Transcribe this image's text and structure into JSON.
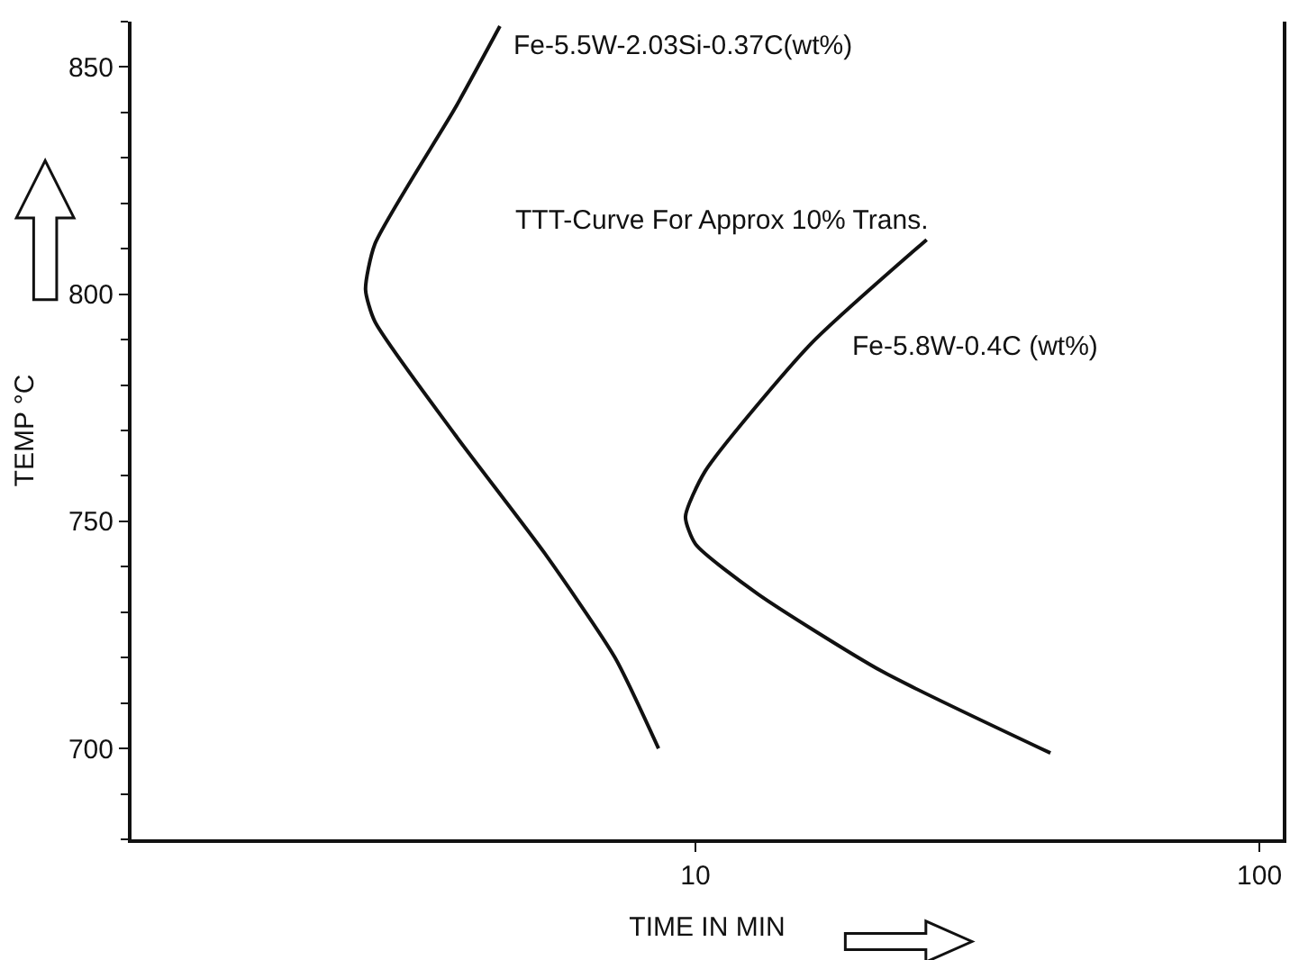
{
  "chart_data": {
    "type": "line",
    "xlabel": "TIME IN MIN",
    "ylabel": "TEMP °C",
    "log": "x",
    "xlim": [
      1,
      110
    ],
    "xticks": [
      10,
      100
    ],
    "ylim": [
      680,
      860
    ],
    "yticks": [
      700,
      750,
      800,
      850
    ],
    "marker": "none",
    "line_style": "solid",
    "series": [
      {
        "name": "Fe-5.5W-2.03Si-0.37C(wt%)",
        "color": "#111111",
        "x": [
          4.5,
          3.75,
          2.7,
          2.6,
          2.7,
          3.75,
          5.4,
          7.2,
          8.6
        ],
        "values": [
          859,
          841,
          811,
          801,
          794,
          769,
          743,
          720,
          700
        ]
      },
      {
        "name": "Fe-5.8W-0.4C (wt%)",
        "color": "#111111",
        "x": [
          25.7,
          16,
          10.4,
          9.6,
          10,
          12.9,
          21.4,
          42.6
        ],
        "values": [
          812,
          789,
          761,
          751,
          745,
          734,
          717,
          699
        ]
      }
    ],
    "annotations": [
      "TTT-Curve For Approx 10% Trans."
    ]
  }
}
